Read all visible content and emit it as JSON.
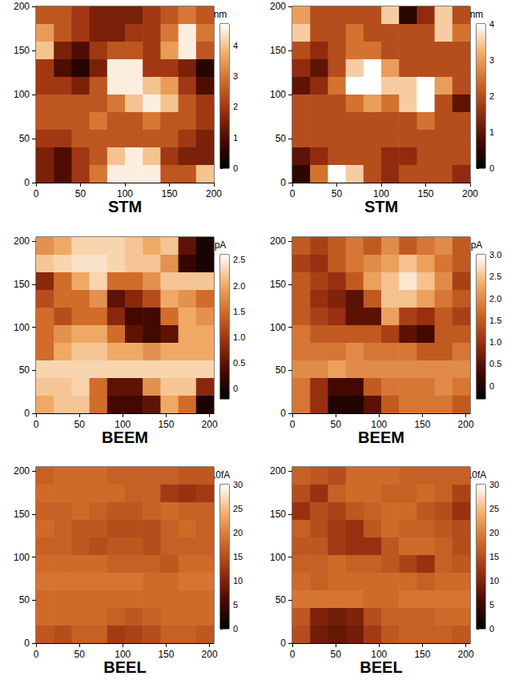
{
  "chart_data": [
    {
      "type": "heatmap",
      "title": "STM",
      "xlim": [
        0,
        200
      ],
      "ylim": [
        0,
        200
      ],
      "xticks": [
        0,
        50,
        100,
        150,
        200
      ],
      "yticks": [
        0,
        50,
        100,
        150,
        200
      ],
      "cells": [
        [
          2.5,
          2.5,
          2.0,
          1.5,
          1.5,
          1.5,
          2.0,
          2.5,
          3.0,
          2.5
        ],
        [
          3.5,
          2.5,
          2.0,
          1.5,
          1.5,
          2.0,
          2.0,
          3.0,
          4.5,
          3.0
        ],
        [
          4.0,
          1.5,
          1.0,
          2.0,
          2.5,
          2.5,
          2.0,
          3.5,
          4.5,
          2.5
        ],
        [
          2.0,
          1.0,
          0.5,
          1.5,
          4.5,
          4.5,
          2.0,
          2.0,
          1.5,
          0.5
        ],
        [
          2.0,
          2.0,
          1.5,
          2.5,
          4.5,
          4.5,
          4.0,
          3.5,
          2.0,
          1.0
        ],
        [
          2.5,
          2.5,
          2.5,
          2.5,
          3.0,
          4.0,
          4.5,
          4.0,
          2.5,
          2.0
        ],
        [
          2.5,
          2.5,
          2.5,
          3.0,
          2.5,
          2.5,
          3.0,
          2.5,
          2.5,
          2.0
        ],
        [
          2.0,
          2.0,
          2.5,
          2.5,
          2.5,
          2.5,
          2.5,
          2.5,
          2.0,
          1.5
        ],
        [
          1.5,
          1.0,
          2.0,
          2.5,
          4.0,
          4.5,
          4.0,
          2.0,
          1.5,
          1.5
        ],
        [
          1.5,
          1.0,
          2.0,
          3.0,
          4.5,
          4.5,
          4.5,
          2.5,
          2.5,
          4.0
        ]
      ],
      "colorbar": {
        "label": "nm",
        "range": [
          0,
          4.7
        ],
        "ticks": [
          0,
          1,
          2,
          3,
          4
        ]
      }
    },
    {
      "type": "heatmap",
      "title": "STM",
      "xlim": [
        0,
        200
      ],
      "ylim": [
        0,
        200
      ],
      "xticks": [
        0,
        50,
        100,
        150,
        200
      ],
      "yticks": [
        0,
        50,
        100,
        150,
        200
      ],
      "cells": [
        [
          3.0,
          2.0,
          2.0,
          2.0,
          2.0,
          3.5,
          0.5,
          1.5,
          3.5,
          2.0
        ],
        [
          3.5,
          2.0,
          2.0,
          2.5,
          2.0,
          2.0,
          2.0,
          2.0,
          3.5,
          2.5
        ],
        [
          2.0,
          1.5,
          2.0,
          2.5,
          2.5,
          2.0,
          2.0,
          2.0,
          2.0,
          2.0
        ],
        [
          1.5,
          1.0,
          2.0,
          3.5,
          4.0,
          3.0,
          2.0,
          2.0,
          2.0,
          2.0
        ],
        [
          1.0,
          1.5,
          2.5,
          4.0,
          4.0,
          3.5,
          3.5,
          4.0,
          3.0,
          2.0
        ],
        [
          2.0,
          2.0,
          2.0,
          2.5,
          3.0,
          2.5,
          3.5,
          4.0,
          2.0,
          1.0
        ],
        [
          2.0,
          2.0,
          2.0,
          2.0,
          2.0,
          2.0,
          2.0,
          2.5,
          2.0,
          2.0
        ],
        [
          2.0,
          2.0,
          2.0,
          2.0,
          2.0,
          2.0,
          2.0,
          2.0,
          2.0,
          2.0
        ],
        [
          1.0,
          1.5,
          2.0,
          2.0,
          2.0,
          1.5,
          1.5,
          2.0,
          2.0,
          2.0
        ],
        [
          0.5,
          2.5,
          4.0,
          3.5,
          2.0,
          1.5,
          2.0,
          2.0,
          2.0,
          1.5
        ]
      ],
      "colorbar": {
        "label": "nm",
        "range": [
          0,
          4
        ],
        "ticks": [
          0,
          1,
          2,
          3,
          4
        ]
      }
    },
    {
      "type": "heatmap",
      "title": "BEEM",
      "xlim": [
        0,
        205
      ],
      "ylim": [
        0,
        205
      ],
      "xticks": [
        0,
        50,
        100,
        150,
        200
      ],
      "yticks": [
        0,
        50,
        100,
        150,
        200
      ],
      "cells": [
        [
          1.8,
          2.0,
          2.3,
          2.3,
          2.3,
          2.2,
          2.0,
          2.2,
          0.5,
          0.0
        ],
        [
          2.2,
          2.3,
          2.4,
          2.4,
          2.3,
          2.2,
          2.2,
          1.8,
          0.2,
          0.0
        ],
        [
          0.8,
          1.5,
          2.0,
          2.3,
          1.5,
          1.5,
          1.8,
          2.2,
          2.2,
          2.2
        ],
        [
          1.2,
          1.5,
          1.5,
          1.8,
          0.5,
          0.8,
          1.2,
          2.0,
          1.8,
          1.5
        ],
        [
          1.5,
          1.2,
          1.5,
          1.5,
          0.8,
          0.3,
          0.3,
          1.5,
          2.0,
          1.8
        ],
        [
          1.5,
          1.8,
          2.0,
          2.0,
          1.5,
          0.5,
          0.3,
          0.5,
          2.0,
          2.0
        ],
        [
          1.5,
          2.0,
          2.2,
          2.2,
          2.0,
          2.0,
          1.8,
          2.0,
          2.0,
          2.0
        ],
        [
          2.3,
          2.3,
          2.3,
          2.3,
          2.3,
          2.3,
          2.3,
          2.3,
          2.3,
          2.3
        ],
        [
          2.2,
          2.2,
          2.3,
          1.5,
          0.5,
          0.5,
          1.8,
          2.2,
          2.2,
          0.8
        ],
        [
          2.0,
          2.2,
          2.2,
          1.5,
          0.3,
          0.3,
          0.5,
          2.0,
          1.5,
          0.0
        ]
      ],
      "colorbar": {
        "label": "pA",
        "range": [
          -0.2,
          2.6
        ],
        "ticks": [
          0,
          0.5,
          {
            "value": 1,
            "label": "1.0"
          },
          1.5,
          {
            "value": 2,
            "label": "2.0"
          },
          2.5
        ]
      }
    },
    {
      "type": "heatmap",
      "title": "BEEM",
      "xlim": [
        0,
        205
      ],
      "ylim": [
        0,
        205
      ],
      "xticks": [
        0,
        50,
        100,
        150,
        200
      ],
      "yticks": [
        0,
        50,
        100,
        150,
        200
      ],
      "cells": [
        [
          1.5,
          1.2,
          1.5,
          1.8,
          1.5,
          2.0,
          1.5,
          1.8,
          2.0,
          1.5
        ],
        [
          1.2,
          1.0,
          1.5,
          1.8,
          2.0,
          2.2,
          2.5,
          2.2,
          1.8,
          1.5
        ],
        [
          1.5,
          1.2,
          1.0,
          1.5,
          2.2,
          2.5,
          2.8,
          2.5,
          2.0,
          1.2
        ],
        [
          1.5,
          1.0,
          0.8,
          0.5,
          1.5,
          2.5,
          2.5,
          2.2,
          1.8,
          1.5
        ],
        [
          1.5,
          1.2,
          1.0,
          0.5,
          0.5,
          2.2,
          1.2,
          1.0,
          1.5,
          1.2
        ],
        [
          1.8,
          1.5,
          1.5,
          1.5,
          1.5,
          1.2,
          0.5,
          0.3,
          1.5,
          1.5
        ],
        [
          1.8,
          1.8,
          1.8,
          2.0,
          1.8,
          1.8,
          1.8,
          1.5,
          1.5,
          1.8
        ],
        [
          2.0,
          2.0,
          2.2,
          2.0,
          2.0,
          2.0,
          2.0,
          2.0,
          2.0,
          2.0
        ],
        [
          1.8,
          1.0,
          0.3,
          0.3,
          1.5,
          1.8,
          1.8,
          1.8,
          2.0,
          1.8
        ],
        [
          1.8,
          1.0,
          0.0,
          0.0,
          0.5,
          1.5,
          1.8,
          1.8,
          1.8,
          1.5
        ]
      ],
      "colorbar": {
        "label": "pA",
        "range": [
          -0.3,
          3.0
        ],
        "ticks": [
          0,
          0.5,
          {
            "value": 1,
            "label": "1.0"
          },
          1.5,
          {
            "value": 2,
            "label": "2.0"
          },
          2.5,
          {
            "value": 3,
            "label": "3.0"
          }
        ]
      }
    },
    {
      "type": "heatmap",
      "title": "BEEL",
      "xlim": [
        0,
        205
      ],
      "ylim": [
        0,
        205
      ],
      "xticks": [
        0,
        50,
        100,
        150,
        200
      ],
      "yticks": [
        0,
        50,
        100,
        150,
        200
      ],
      "cells": [
        [
          17,
          18,
          18,
          18,
          17,
          17,
          17,
          17,
          16,
          16
        ],
        [
          18,
          18,
          18,
          18,
          18,
          17,
          17,
          13,
          12,
          13
        ],
        [
          17,
          17,
          18,
          17,
          16,
          16,
          17,
          18,
          17,
          17
        ],
        [
          18,
          17,
          16,
          16,
          15,
          15,
          15,
          17,
          18,
          17
        ],
        [
          17,
          17,
          16,
          15,
          16,
          16,
          15,
          17,
          17,
          17
        ],
        [
          18,
          18,
          18,
          18,
          17,
          17,
          17,
          16,
          18,
          18
        ],
        [
          19,
          19,
          19,
          19,
          19,
          19,
          18,
          18,
          19,
          19
        ],
        [
          18,
          18,
          18,
          18,
          18,
          18,
          18,
          18,
          18,
          18
        ],
        [
          18,
          18,
          18,
          18,
          17,
          16,
          17,
          18,
          18,
          18
        ],
        [
          16,
          15,
          17,
          17,
          13,
          14,
          15,
          17,
          17,
          16
        ]
      ],
      "colorbar": {
        "label": "10fA",
        "range": [
          0,
          30
        ],
        "ticks": [
          0,
          5,
          10,
          15,
          20,
          25,
          30
        ]
      }
    },
    {
      "type": "heatmap",
      "title": "BEEL",
      "xlim": [
        0,
        205
      ],
      "ylim": [
        0,
        205
      ],
      "xticks": [
        0,
        50,
        100,
        150,
        200
      ],
      "yticks": [
        0,
        50,
        100,
        150,
        200
      ],
      "cells": [
        [
          17,
          16,
          15,
          18,
          18,
          18,
          17,
          17,
          17,
          17
        ],
        [
          15,
          12,
          17,
          18,
          18,
          17,
          17,
          18,
          17,
          14
        ],
        [
          12,
          15,
          14,
          16,
          17,
          18,
          18,
          16,
          15,
          12
        ],
        [
          17,
          15,
          13,
          12,
          16,
          18,
          17,
          17,
          16,
          15
        ],
        [
          16,
          16,
          13,
          12,
          12,
          16,
          18,
          18,
          17,
          15
        ],
        [
          17,
          17,
          18,
          17,
          17,
          16,
          14,
          12,
          17,
          16
        ],
        [
          18,
          17,
          18,
          18,
          18,
          18,
          18,
          17,
          18,
          18
        ],
        [
          19,
          19,
          19,
          19,
          18,
          18,
          19,
          19,
          19,
          19
        ],
        [
          16,
          10,
          9,
          10,
          15,
          17,
          17,
          17,
          18,
          18
        ],
        [
          15,
          9,
          8,
          9,
          13,
          16,
          17,
          17,
          17,
          16
        ]
      ],
      "colorbar": {
        "label": "10fA",
        "range": [
          0,
          30
        ],
        "ticks": [
          0,
          5,
          10,
          15,
          20,
          25,
          30
        ]
      }
    }
  ]
}
